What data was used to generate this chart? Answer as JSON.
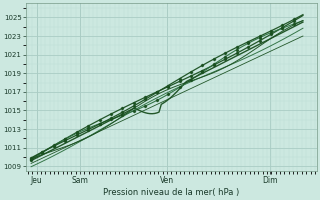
{
  "bg_color": "#cce8e0",
  "grid_major_color": "#aaccc4",
  "grid_minor_color": "#bbddd5",
  "line_color_dark": "#1a5020",
  "line_color_med": "#2d7040",
  "ylim": [
    1008.5,
    1026.5
  ],
  "yticks": [
    1009,
    1011,
    1013,
    1015,
    1017,
    1019,
    1021,
    1023,
    1025
  ],
  "xtick_labels": [
    "Jeu",
    "Sam",
    "Ven",
    "Dim"
  ],
  "xtick_pos": [
    0.02,
    0.18,
    0.5,
    0.88
  ],
  "xlabel": "Pression niveau de la mer( hPa )",
  "xlim": [
    -0.02,
    1.05
  ],
  "num_points": 120
}
